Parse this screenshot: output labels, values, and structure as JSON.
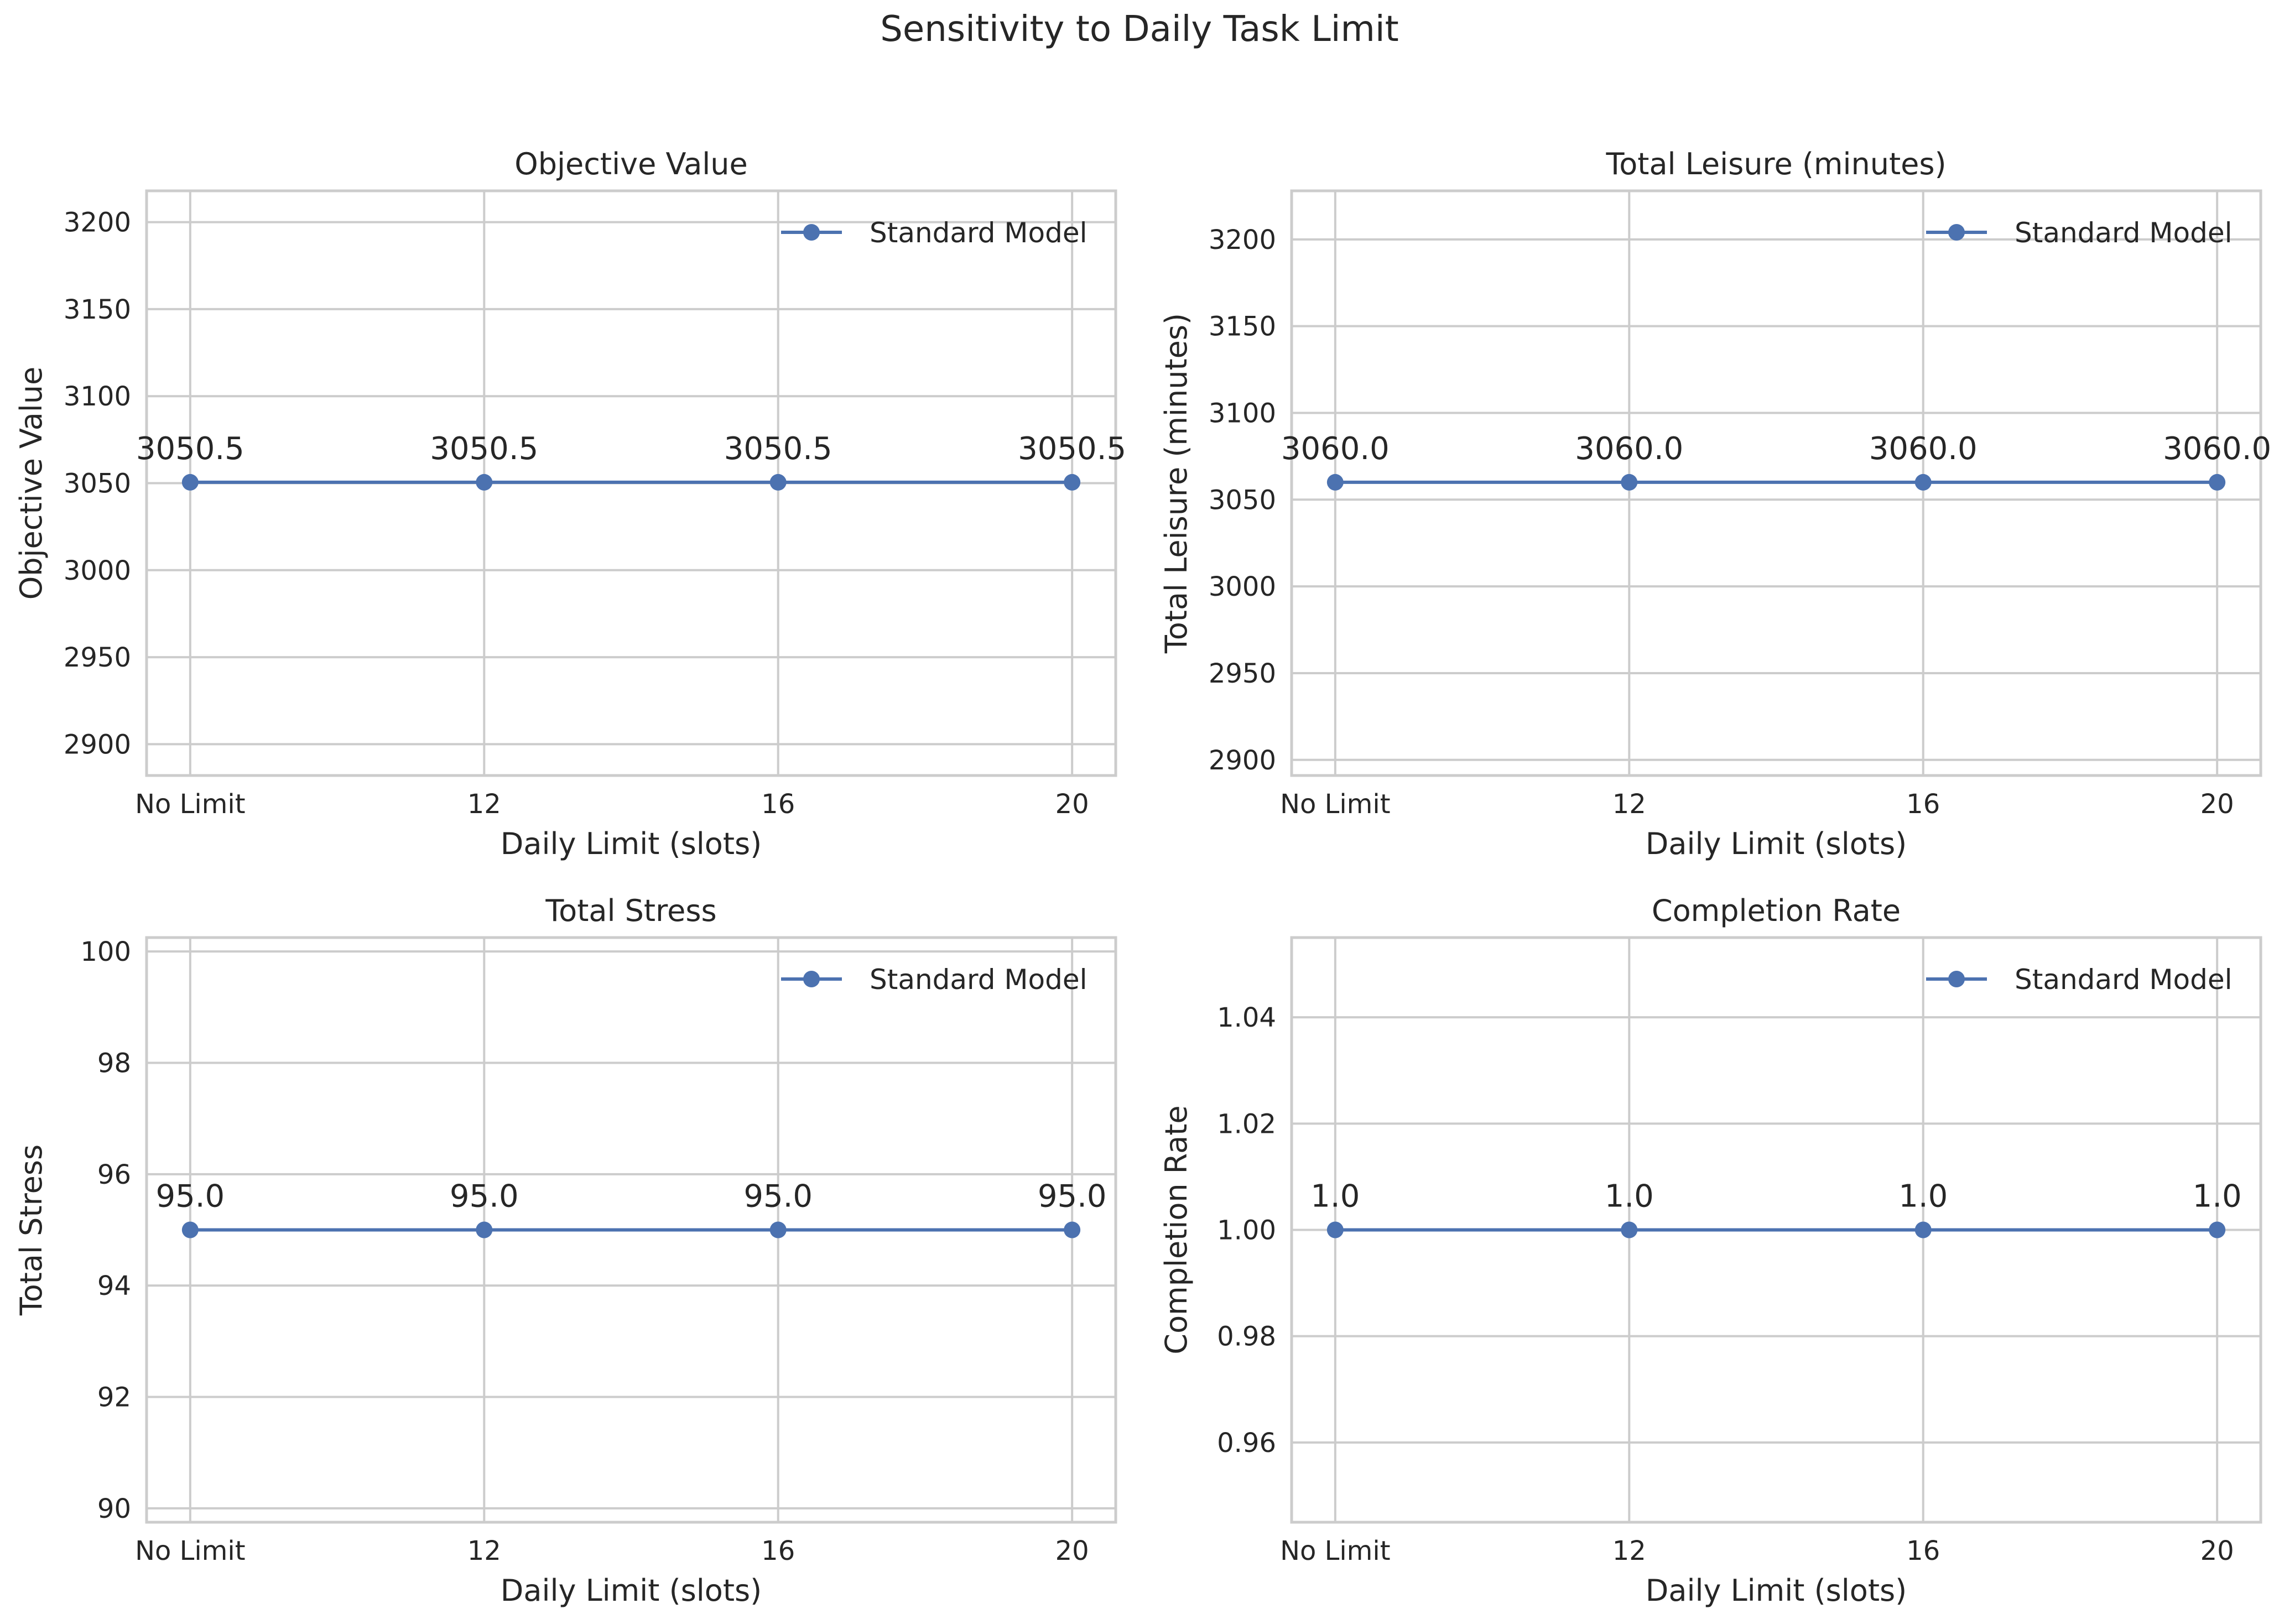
{
  "figure": {
    "title": "Sensitivity to Daily Task Limit"
  },
  "colors": {
    "series": "#4c72b0",
    "grid": "#cccccc",
    "spine": "#cccccc",
    "background": "#ffffff"
  },
  "chart_data": [
    {
      "type": "line",
      "title": "Objective Value",
      "xlabel": "Daily Limit (slots)",
      "ylabel": "Objective Value",
      "categories": [
        "No Limit",
        "12",
        "16",
        "20"
      ],
      "series": [
        {
          "name": "Standard Model",
          "values": [
            3050.5,
            3050.5,
            3050.5,
            3050.5
          ]
        }
      ],
      "data_labels": [
        "3050.5",
        "3050.5",
        "3050.5",
        "3050.5"
      ],
      "ylim": [
        2882,
        3218
      ],
      "yticks": [
        2900,
        2950,
        3000,
        3050,
        3100,
        3150,
        3200
      ],
      "ytick_labels": [
        "2900",
        "2950",
        "3000",
        "3050",
        "3100",
        "3150",
        "3200"
      ],
      "grid": true,
      "legend": "upper right"
    },
    {
      "type": "line",
      "title": "Total Leisure (minutes)",
      "xlabel": "Daily Limit (slots)",
      "ylabel": "Total Leisure (minutes)",
      "categories": [
        "No Limit",
        "12",
        "16",
        "20"
      ],
      "series": [
        {
          "name": "Standard Model",
          "values": [
            3060.0,
            3060.0,
            3060.0,
            3060.0
          ]
        }
      ],
      "data_labels": [
        "3060.0",
        "3060.0",
        "3060.0",
        "3060.0"
      ],
      "ylim": [
        2891,
        3228
      ],
      "yticks": [
        2900,
        2950,
        3000,
        3050,
        3100,
        3150,
        3200
      ],
      "ytick_labels": [
        "2900",
        "2950",
        "3000",
        "3050",
        "3100",
        "3150",
        "3200"
      ],
      "grid": true,
      "legend": "upper right"
    },
    {
      "type": "line",
      "title": "Total Stress",
      "xlabel": "Daily Limit (slots)",
      "ylabel": "Total Stress",
      "categories": [
        "No Limit",
        "12",
        "16",
        "20"
      ],
      "series": [
        {
          "name": "Standard Model",
          "values": [
            95.0,
            95.0,
            95.0,
            95.0
          ]
        }
      ],
      "data_labels": [
        "95.0",
        "95.0",
        "95.0",
        "95.0"
      ],
      "ylim": [
        89.75,
        100.25
      ],
      "yticks": [
        90,
        92,
        94,
        96,
        98,
        100
      ],
      "ytick_labels": [
        "90",
        "92",
        "94",
        "96",
        "98",
        "100"
      ],
      "grid": true,
      "legend": "upper right"
    },
    {
      "type": "line",
      "title": "Completion Rate",
      "xlabel": "Daily Limit (slots)",
      "ylabel": "Completion Rate",
      "categories": [
        "No Limit",
        "12",
        "16",
        "20"
      ],
      "series": [
        {
          "name": "Standard Model",
          "values": [
            1.0,
            1.0,
            1.0,
            1.0
          ]
        }
      ],
      "data_labels": [
        "1.0",
        "1.0",
        "1.0",
        "1.0"
      ],
      "ylim": [
        0.945,
        1.055
      ],
      "yticks": [
        0.96,
        0.98,
        1.0,
        1.02,
        1.04
      ],
      "ytick_labels": [
        "0.96",
        "0.98",
        "1.00",
        "1.02",
        "1.04"
      ],
      "grid": true,
      "legend": "upper right"
    }
  ]
}
